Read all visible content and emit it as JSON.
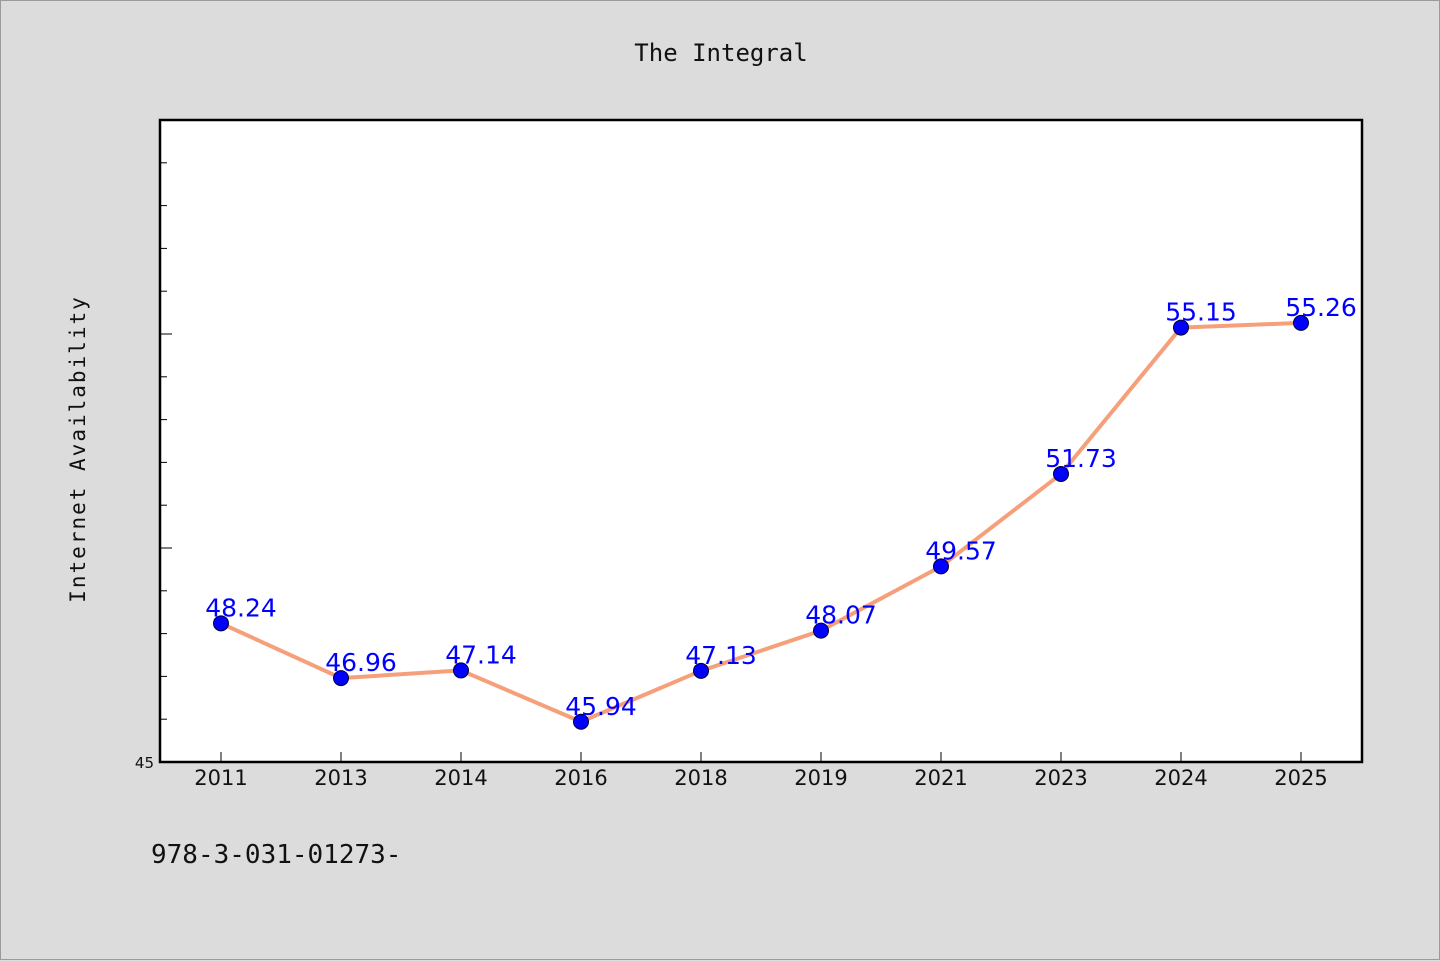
{
  "chart_data": {
    "type": "line",
    "title": "The Integral",
    "xlabel": "",
    "ylabel": "Internet Availability",
    "categories": [
      "2011",
      "2013",
      "2014",
      "2016",
      "2018",
      "2019",
      "2021",
      "2023",
      "2024",
      "2025"
    ],
    "series": [
      {
        "values": [
          48.24,
          46.96,
          47.14,
          45.94,
          47.13,
          48.07,
          49.57,
          51.73,
          55.15,
          55.26
        ]
      }
    ],
    "ylim": [
      45,
      60
    ],
    "y_tick_labels": [
      "45"
    ],
    "data_labels": [
      "48.24",
      "46.96",
      "47.14",
      "45.94",
      "47.13",
      "48.07",
      "49.57",
      "51.73",
      "55.15",
      "55.26"
    ],
    "grid": false,
    "line_color": "#f5a07a",
    "marker_color": "#0000ff",
    "label_color": "#0000ff"
  },
  "footer": {
    "text": "978-3-031-01273-"
  }
}
